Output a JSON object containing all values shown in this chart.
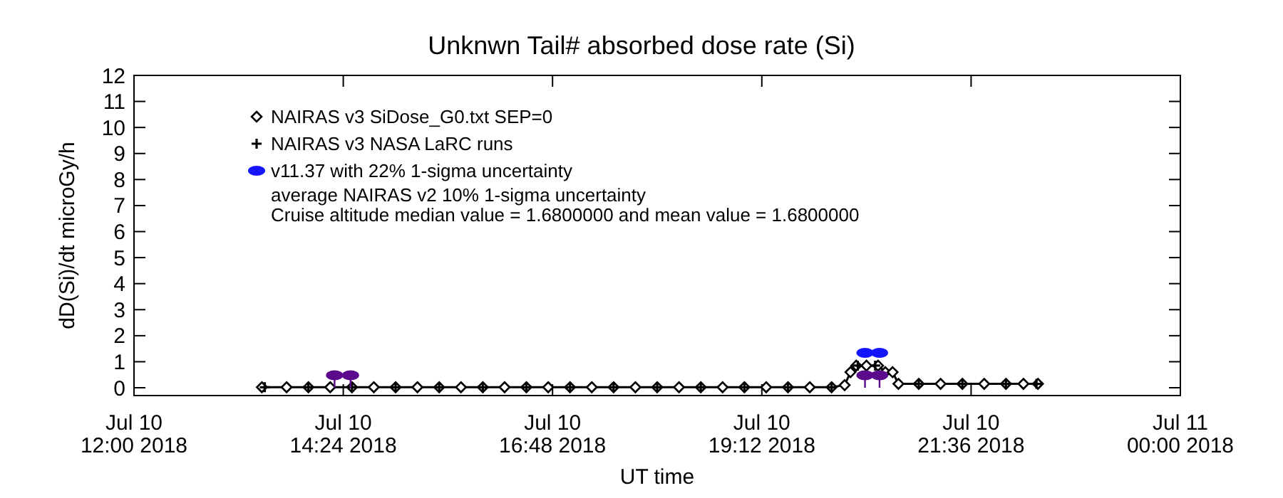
{
  "chart_data": {
    "type": "line",
    "title": "Unknwn Tail#  absorbed dose rate (Si)",
    "xlabel": "UT time",
    "ylabel": "dD(Si)/dt microGy/h",
    "xlim": [
      "2018-07-10T12:00",
      "2018-07-11T00:00"
    ],
    "ylim": [
      -0.3,
      12
    ],
    "xticks": [
      {
        "value": "2018-07-10T12:00",
        "label": "Jul 10\n12:00 2018"
      },
      {
        "value": "2018-07-10T14:24",
        "label": "Jul 10\n14:24 2018"
      },
      {
        "value": "2018-07-10T16:48",
        "label": "Jul 10\n16:48 2018"
      },
      {
        "value": "2018-07-10T19:12",
        "label": "Jul 10\n19:12 2018"
      },
      {
        "value": "2018-07-10T21:36",
        "label": "Jul 10\n21:36 2018"
      },
      {
        "value": "2018-07-11T00:00",
        "label": "Jul 11\n00:00 2018"
      }
    ],
    "yticks": [
      0,
      1,
      2,
      3,
      4,
      5,
      6,
      7,
      8,
      9,
      10,
      11,
      12
    ],
    "legend": "top left",
    "annotations": [
      "average NAIRAS v2 10% 1-sigma uncertainty",
      "Cruise altitude median value = 1.6800000 and mean value = 1.6800000"
    ],
    "series": [
      {
        "name": "NAIRAS v3 SiDose_G0.txt SEP=0",
        "marker": "diamond",
        "color": "#000000",
        "x": [
          "2018-07-10T13:28",
          "2018-07-10T13:45",
          "2018-07-10T14:00",
          "2018-07-10T14:15",
          "2018-07-10T14:30",
          "2018-07-10T14:45",
          "2018-07-10T15:00",
          "2018-07-10T15:15",
          "2018-07-10T15:30",
          "2018-07-10T15:45",
          "2018-07-10T16:00",
          "2018-07-10T16:15",
          "2018-07-10T16:30",
          "2018-07-10T16:45",
          "2018-07-10T17:00",
          "2018-07-10T17:15",
          "2018-07-10T17:30",
          "2018-07-10T17:45",
          "2018-07-10T18:00",
          "2018-07-10T18:15",
          "2018-07-10T18:30",
          "2018-07-10T18:45",
          "2018-07-10T19:00",
          "2018-07-10T19:15",
          "2018-07-10T19:30",
          "2018-07-10T19:45",
          "2018-07-10T20:00",
          "2018-07-10T20:09",
          "2018-07-10T20:13",
          "2018-07-10T20:17",
          "2018-07-10T20:24",
          "2018-07-10T20:32",
          "2018-07-10T20:37",
          "2018-07-10T20:42",
          "2018-07-10T20:46",
          "2018-07-10T21:00",
          "2018-07-10T21:15",
          "2018-07-10T21:30",
          "2018-07-10T21:45",
          "2018-07-10T22:00",
          "2018-07-10T22:12",
          "2018-07-10T22:22"
        ],
        "values": [
          0.02,
          0.02,
          0.02,
          0.02,
          0.02,
          0.02,
          0.02,
          0.02,
          0.02,
          0.02,
          0.02,
          0.02,
          0.02,
          0.02,
          0.02,
          0.02,
          0.02,
          0.02,
          0.02,
          0.02,
          0.02,
          0.02,
          0.02,
          0.02,
          0.02,
          0.02,
          0.02,
          0.1,
          0.6,
          0.85,
          0.85,
          0.85,
          0.6,
          0.6,
          0.15,
          0.15,
          0.15,
          0.15,
          0.15,
          0.15,
          0.15,
          0.15
        ]
      },
      {
        "name": "NAIRAS v3 NASA LaRC runs",
        "type": "scatter",
        "marker": "cross",
        "color": "#000000",
        "x": [
          "2018-07-10T13:30",
          "2018-07-10T14:00",
          "2018-07-10T14:30",
          "2018-07-10T15:00",
          "2018-07-10T15:30",
          "2018-07-10T16:00",
          "2018-07-10T16:30",
          "2018-07-10T17:00",
          "2018-07-10T17:30",
          "2018-07-10T18:00",
          "2018-07-10T18:30",
          "2018-07-10T19:00",
          "2018-07-10T19:30",
          "2018-07-10T20:00",
          "2018-07-10T20:18",
          "2018-07-10T20:30",
          "2018-07-10T21:00",
          "2018-07-10T21:30",
          "2018-07-10T22:00",
          "2018-07-10T22:21"
        ],
        "values": [
          0.02,
          0.02,
          0.02,
          0.02,
          0.02,
          0.02,
          0.02,
          0.02,
          0.02,
          0.02,
          0.02,
          0.02,
          0.02,
          0.02,
          0.85,
          0.85,
          0.15,
          0.15,
          0.15,
          0.15
        ]
      },
      {
        "name": "v11.37 with 22% 1-sigma uncertainty",
        "type": "scatter",
        "marker": "circle",
        "color": "#1414ff",
        "x": [
          "2018-07-10T20:23",
          "2018-07-10T20:33"
        ],
        "values": [
          1.34,
          1.34
        ]
      },
      {
        "type": "scatter",
        "marker": "circle",
        "color": "#5a0a8a",
        "x": [
          "2018-07-10T14:18",
          "2018-07-10T14:29",
          "2018-07-10T20:23",
          "2018-07-10T20:33"
        ],
        "values": [
          0.48,
          0.48,
          0.48,
          0.48
        ],
        "errors": [
          [
            0,
            0.48
          ],
          [
            0,
            0.48
          ],
          [
            0,
            0.48
          ],
          [
            0,
            0.48
          ]
        ]
      }
    ]
  }
}
